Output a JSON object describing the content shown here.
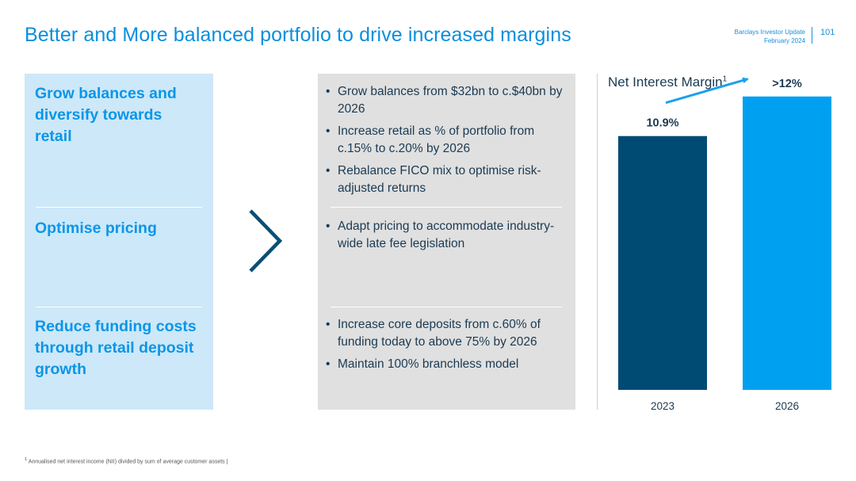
{
  "header": {
    "title": "Better and More balanced portfolio to drive increased margins",
    "report": "Barclays Investor Update",
    "date": "February 2024",
    "page_number": "101"
  },
  "left_panel": {
    "items": [
      "Grow balances and diversify towards retail",
      "Optimise pricing",
      "Reduce funding costs through retail deposit growth"
    ]
  },
  "middle_panel": {
    "group1": [
      "Grow balances from $32bn to c.$40bn by 2026",
      "Increase retail as % of portfolio from c.15% to c.20% by 2026",
      "Rebalance FICO mix to optimise risk-adjusted returns"
    ],
    "group2": [
      "Adapt pricing to accommodate industry-wide late fee legislation"
    ],
    "group3": [
      "Increase core deposits from c.60% of funding today to above 75% by 2026",
      "Maintain 100% branchless model"
    ]
  },
  "chart_data": {
    "type": "bar",
    "title": "Net Interest Margin",
    "title_footnote_marker": "1",
    "categories": [
      "2023",
      "2026"
    ],
    "values": [
      10.9,
      12.6
    ],
    "data_labels": [
      "10.9%",
      ">12%"
    ],
    "colors": [
      "#004b74",
      "#00a0f0"
    ],
    "ylim": [
      0,
      13
    ],
    "xlabel": "",
    "ylabel": "",
    "grid": false,
    "annotation": "upward-trend-arrow"
  },
  "footnote": {
    "marker": "1",
    "text": "Annualised net interest income (NII) divided by sum of average customer assets"
  },
  "colors": {
    "accent_blue": "#0a8fde",
    "light_panel": "#cde8f8",
    "grey_panel": "#e0e0e0",
    "dark_navy": "#004b74",
    "text_dark": "#1b3a52"
  }
}
